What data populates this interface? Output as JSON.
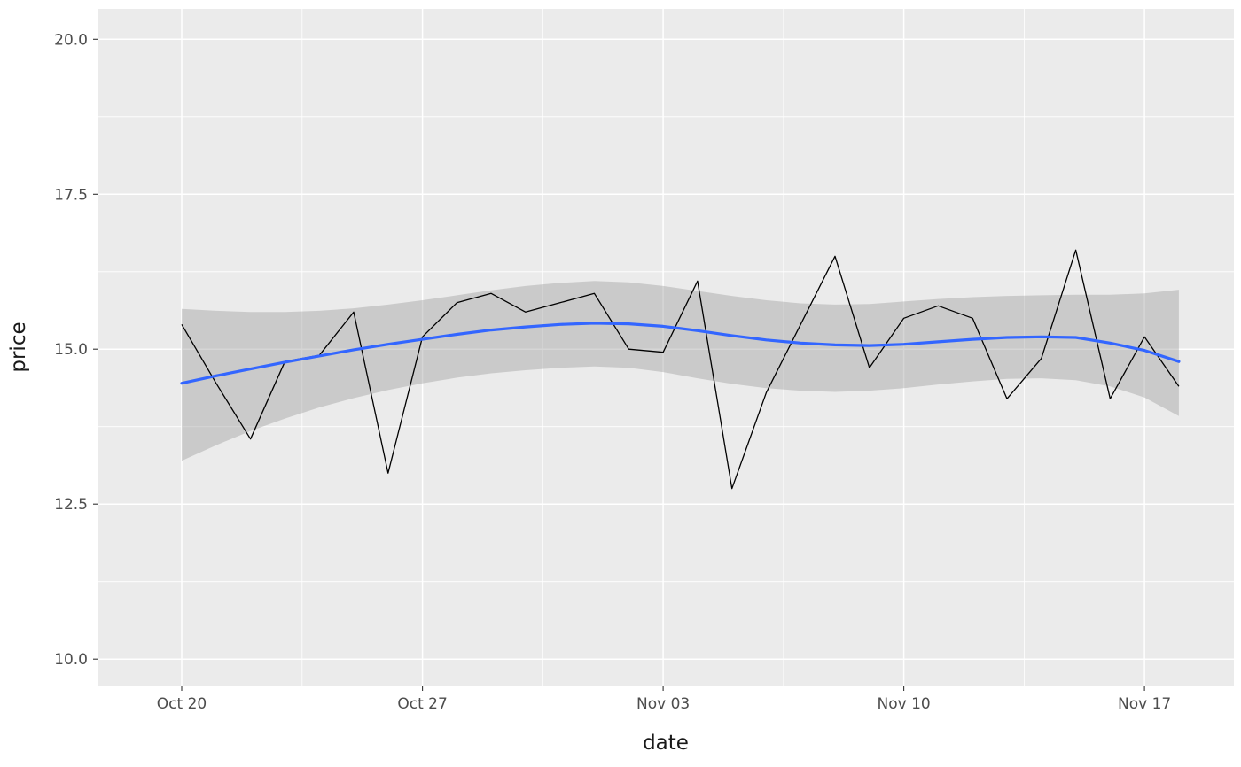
{
  "chart_data": {
    "type": "line",
    "title": "",
    "xlabel": "date",
    "ylabel": "price",
    "legend": "none",
    "grid": "on",
    "x_dates": [
      "Oct 20",
      "Oct 21",
      "Oct 22",
      "Oct 23",
      "Oct 24",
      "Oct 25",
      "Oct 26",
      "Oct 27",
      "Oct 28",
      "Oct 29",
      "Oct 30",
      "Oct 31",
      "Nov 01",
      "Nov 02",
      "Nov 03",
      "Nov 04",
      "Nov 05",
      "Nov 06",
      "Nov 07",
      "Nov 08",
      "Nov 09",
      "Nov 10",
      "Nov 11",
      "Nov 12",
      "Nov 13",
      "Nov 14",
      "Nov 15",
      "Nov 16",
      "Nov 17",
      "Nov 18"
    ],
    "series": {
      "price": [
        15.4,
        14.45,
        13.55,
        14.8,
        14.9,
        15.6,
        13.0,
        15.2,
        15.75,
        15.9,
        15.6,
        15.75,
        15.9,
        15.0,
        14.95,
        16.1,
        12.75,
        14.3,
        15.4,
        16.5,
        14.7,
        15.5,
        15.7,
        15.5,
        14.2,
        14.85,
        16.6,
        14.2,
        15.2,
        14.4
      ],
      "smooth": [
        14.45,
        14.57,
        14.68,
        14.79,
        14.89,
        14.99,
        15.08,
        15.16,
        15.24,
        15.31,
        15.36,
        15.4,
        15.42,
        15.41,
        15.37,
        15.3,
        15.22,
        15.15,
        15.1,
        15.07,
        15.06,
        15.08,
        15.12,
        15.16,
        15.19,
        15.2,
        15.19,
        15.1,
        14.98,
        14.8
      ],
      "ribbon_lower": [
        13.2,
        13.45,
        13.68,
        13.88,
        14.06,
        14.21,
        14.34,
        14.45,
        14.54,
        14.61,
        14.66,
        14.7,
        14.72,
        14.7,
        14.63,
        14.53,
        14.44,
        14.37,
        14.33,
        14.31,
        14.33,
        14.37,
        14.43,
        14.48,
        14.52,
        14.53,
        14.5,
        14.4,
        14.22,
        13.92
      ],
      "ribbon_upper": [
        15.65,
        15.62,
        15.6,
        15.6,
        15.62,
        15.66,
        15.72,
        15.79,
        15.87,
        15.95,
        16.02,
        16.07,
        16.1,
        16.08,
        16.02,
        15.94,
        15.86,
        15.79,
        15.74,
        15.72,
        15.73,
        15.77,
        15.81,
        15.84,
        15.86,
        15.87,
        15.88,
        15.88,
        15.9,
        15.96
      ]
    },
    "axes": {
      "x_ticks": [
        {
          "label": "Oct 20",
          "day": 0
        },
        {
          "label": "Oct 27",
          "day": 7
        },
        {
          "label": "Nov 03",
          "day": 14
        },
        {
          "label": "Nov 10",
          "day": 21
        },
        {
          "label": "Nov 17",
          "day": 28
        }
      ],
      "x_minor_days": [
        3.5,
        10.5,
        17.5,
        24.5
      ],
      "y_ticks": [
        {
          "label": "10.0",
          "value": 10.0
        },
        {
          "label": "12.5",
          "value": 12.5
        },
        {
          "label": "15.0",
          "value": 15.0
        },
        {
          "label": "17.5",
          "value": 17.5
        },
        {
          "label": "20.0",
          "value": 20.0
        }
      ],
      "y_minor": [
        11.25,
        13.75,
        16.25,
        18.75
      ],
      "xlim_days": [
        -2.45,
        30.6
      ],
      "ylim": [
        9.56,
        20.49
      ]
    },
    "style": {
      "background": "#FFFFFF",
      "panel_bg": "#EBEBEB",
      "grid_color": "#FFFFFF",
      "ribbon_color": "#9E9E9E",
      "ribbon_opacity": 0.42,
      "price_line_color": "#000000",
      "smooth_line_color": "#3366FF",
      "tick_color": "#333333",
      "tick_label_color": "#4D4D4D",
      "axis_title_color": "#1A1A1A"
    }
  }
}
